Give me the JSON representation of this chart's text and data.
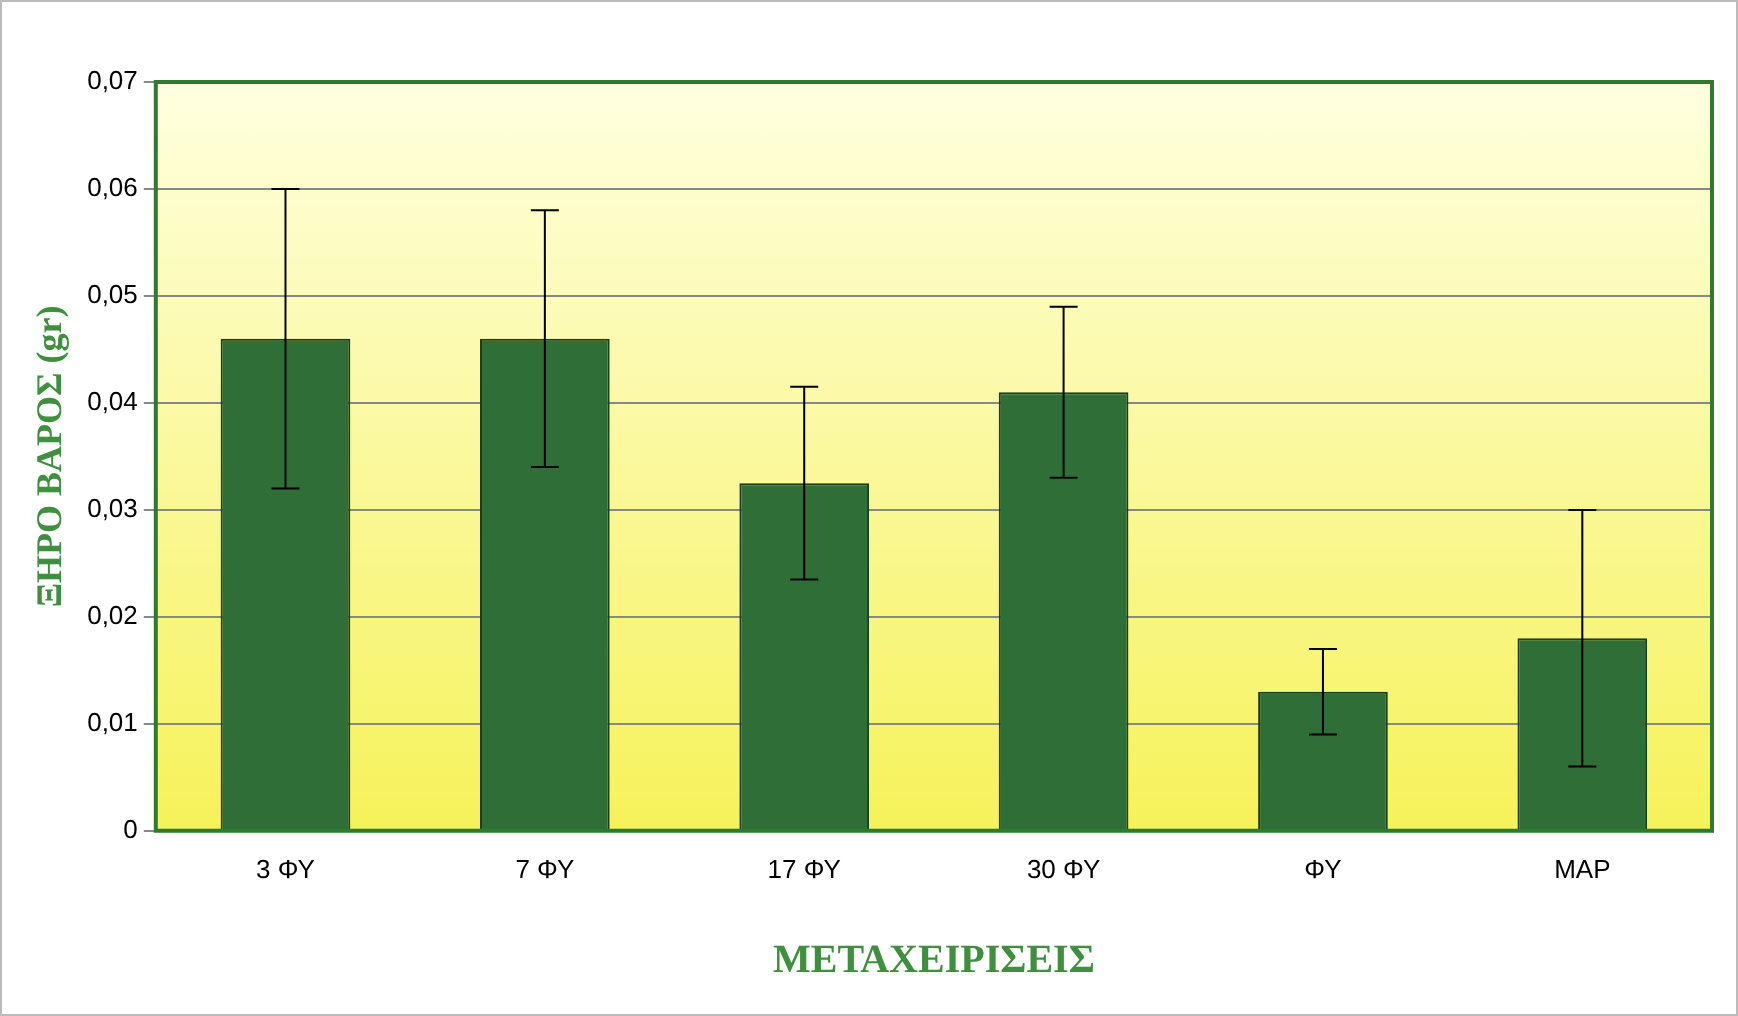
{
  "chart_data": {
    "type": "bar",
    "xlabel": "ΜΕΤΑΧΕΙΡΙΣΕΙΣ",
    "ylabel": "ΞΗΡΟ ΒΑΡΟΣ (gr)",
    "categories": [
      "3 ΦΥ",
      "7 ΦΥ",
      "17 ΦΥ",
      "30 ΦΥ",
      "ΦΥ",
      "MAP"
    ],
    "values": [
      0.046,
      0.046,
      0.0325,
      0.041,
      0.013,
      0.018
    ],
    "errors": [
      0.014,
      0.012,
      0.009,
      0.008,
      0.004,
      0.012
    ],
    "color": "#2f6e37",
    "ylim": [
      0,
      0.07
    ],
    "yticks": [
      {
        "value": 0,
        "label": "0"
      },
      {
        "value": 0.01,
        "label": "0,01"
      },
      {
        "value": 0.02,
        "label": "0,02"
      },
      {
        "value": 0.03,
        "label": "0,03"
      },
      {
        "value": 0.04,
        "label": "0,04"
      },
      {
        "value": 0.05,
        "label": "0,05"
      },
      {
        "value": 0.06,
        "label": "0,06"
      },
      {
        "value": 0.07,
        "label": "0,07"
      }
    ],
    "grid": "y",
    "legend": false
  }
}
